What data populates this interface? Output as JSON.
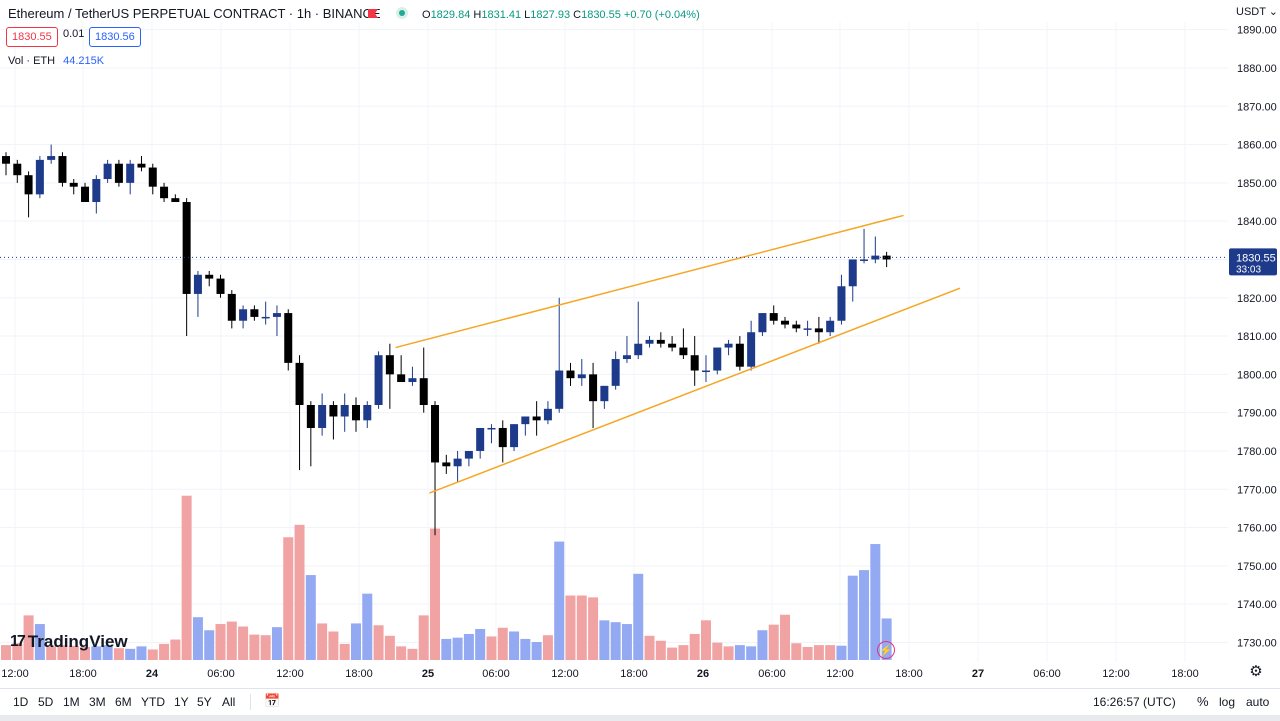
{
  "header": {
    "title": "Ethereum / TetherUS PERPETUAL CONTRACT · 1h · BINANCE",
    "ohlc": {
      "o_label": "O",
      "o": "1829.84",
      "h_label": "H",
      "h": "1831.41",
      "l_label": "L",
      "l": "1827.93",
      "c_label": "C",
      "c": "1830.55",
      "change": "+0.70 (+0.04%)"
    },
    "sell_price": "1830.55",
    "spread": "0.01",
    "buy_price": "1830.56",
    "volume_label": "Vol · ETH",
    "volume_value": "44.215K",
    "currency": "USDT"
  },
  "colors": {
    "up": "#1e3a8a",
    "down": "#000000",
    "vol_up": "#93a9f2",
    "vol_down": "#f1a3a3",
    "trend": "#f5a623",
    "price_badge": "#1e3a8a"
  },
  "chart_data": {
    "type": "candlestick",
    "symbol": "ETHUSDT.P",
    "interval": "1h",
    "y_axis": {
      "range": [
        1724,
        1892
      ],
      "ticks": [
        1730,
        1740,
        1750,
        1760,
        1770,
        1780,
        1790,
        1800,
        1810,
        1820,
        1830,
        1840,
        1850,
        1860,
        1870,
        1880,
        1890
      ]
    },
    "x_ticks": [
      "12:00",
      "18:00",
      "24",
      "06:00",
      "12:00",
      "18:00",
      "25",
      "06:00",
      "12:00",
      "18:00",
      "26",
      "06:00",
      "12:00",
      "18:00",
      "27",
      "06:00",
      "12:00",
      "18:00"
    ],
    "last_price": "1830.55",
    "countdown": "33:03",
    "candles": [
      [
        1857,
        1858,
        1852,
        1855
      ],
      [
        1855,
        1856,
        1850,
        1852
      ],
      [
        1852,
        1853,
        1841,
        1847
      ],
      [
        1847,
        1857,
        1846,
        1856
      ],
      [
        1856,
        1860,
        1855,
        1857
      ],
      [
        1857,
        1858,
        1849,
        1850
      ],
      [
        1850,
        1851,
        1847,
        1849
      ],
      [
        1849,
        1850,
        1845,
        1845
      ],
      [
        1845,
        1852,
        1842,
        1851
      ],
      [
        1851,
        1856,
        1850,
        1855
      ],
      [
        1855,
        1856,
        1849,
        1850
      ],
      [
        1850,
        1856,
        1847,
        1855
      ],
      [
        1855,
        1857,
        1853,
        1854
      ],
      [
        1854,
        1855,
        1847,
        1849
      ],
      [
        1849,
        1850,
        1845,
        1846
      ],
      [
        1846,
        1847,
        1845,
        1845
      ],
      [
        1845,
        1846,
        1810,
        1821
      ],
      [
        1821,
        1827,
        1815,
        1826
      ],
      [
        1826,
        1827,
        1823,
        1825
      ],
      [
        1825,
        1826,
        1820,
        1821
      ],
      [
        1821,
        1822,
        1812,
        1814
      ],
      [
        1814,
        1818,
        1812,
        1817
      ],
      [
        1817,
        1818,
        1814,
        1815
      ],
      [
        1815,
        1819,
        1813,
        1815
      ],
      [
        1815,
        1818,
        1810,
        1816
      ],
      [
        1816,
        1817,
        1801,
        1803
      ],
      [
        1803,
        1805,
        1775,
        1792
      ],
      [
        1792,
        1793,
        1776,
        1786
      ],
      [
        1786,
        1795,
        1784,
        1792
      ],
      [
        1792,
        1793,
        1783,
        1789
      ],
      [
        1789,
        1795,
        1785,
        1792
      ],
      [
        1792,
        1794,
        1785,
        1788
      ],
      [
        1788,
        1793,
        1786,
        1792
      ],
      [
        1792,
        1806,
        1791,
        1805
      ],
      [
        1805,
        1808,
        1791,
        1800
      ],
      [
        1800,
        1805,
        1798,
        1798
      ],
      [
        1798,
        1802,
        1797,
        1799
      ],
      [
        1799,
        1807,
        1790,
        1792
      ],
      [
        1792,
        1793,
        1758,
        1777
      ],
      [
        1777,
        1779,
        1774,
        1776
      ],
      [
        1776,
        1780,
        1772,
        1778
      ],
      [
        1778,
        1780,
        1776,
        1780
      ],
      [
        1780,
        1786,
        1778,
        1786
      ],
      [
        1786,
        1787,
        1782,
        1786
      ],
      [
        1786,
        1788,
        1777,
        1781
      ],
      [
        1781,
        1787,
        1780,
        1787
      ],
      [
        1787,
        1789,
        1784,
        1789
      ],
      [
        1789,
        1793,
        1784,
        1788
      ],
      [
        1788,
        1793,
        1787,
        1791
      ],
      [
        1791,
        1820,
        1790,
        1801
      ],
      [
        1801,
        1803,
        1797,
        1799
      ],
      [
        1799,
        1804,
        1797,
        1800
      ],
      [
        1800,
        1803,
        1786,
        1793
      ],
      [
        1793,
        1797,
        1791,
        1797
      ],
      [
        1797,
        1806,
        1796,
        1804
      ],
      [
        1804,
        1810,
        1803,
        1805
      ],
      [
        1805,
        1819,
        1804,
        1808
      ],
      [
        1808,
        1810,
        1807,
        1809
      ],
      [
        1809,
        1811,
        1807,
        1808
      ],
      [
        1808,
        1810,
        1806,
        1807
      ],
      [
        1807,
        1812,
        1804,
        1805
      ],
      [
        1805,
        1810,
        1797,
        1801
      ],
      [
        1801,
        1805,
        1798,
        1801
      ],
      [
        1801,
        1807,
        1800,
        1807
      ],
      [
        1807,
        1809,
        1805,
        1808
      ],
      [
        1808,
        1810,
        1801,
        1802
      ],
      [
        1802,
        1814,
        1801,
        1811
      ],
      [
        1811,
        1816,
        1810,
        1816
      ],
      [
        1816,
        1818,
        1813,
        1814
      ],
      [
        1814,
        1815,
        1812,
        1813
      ],
      [
        1813,
        1814,
        1811,
        1812
      ],
      [
        1812,
        1814,
        1810,
        1812
      ],
      [
        1812,
        1815,
        1808,
        1811
      ],
      [
        1811,
        1815,
        1810,
        1814
      ],
      [
        1814,
        1826,
        1813,
        1823
      ],
      [
        1823,
        1829,
        1819,
        1830
      ],
      [
        1830,
        1838,
        1829,
        1830
      ],
      [
        1830,
        1836,
        1829,
        1831
      ],
      [
        1831,
        1832,
        1828,
        1830
      ]
    ],
    "volumes": [
      [
        0.24,
        0
      ],
      [
        0.27,
        0
      ],
      [
        0.72,
        0
      ],
      [
        0.58,
        1
      ],
      [
        0.22,
        0
      ],
      [
        0.24,
        0
      ],
      [
        0.23,
        0
      ],
      [
        0.21,
        0
      ],
      [
        0.22,
        1
      ],
      [
        0.24,
        1
      ],
      [
        0.19,
        0
      ],
      [
        0.18,
        1
      ],
      [
        0.22,
        1
      ],
      [
        0.17,
        0
      ],
      [
        0.26,
        0
      ],
      [
        0.33,
        0
      ],
      [
        2.65,
        0
      ],
      [
        0.69,
        1
      ],
      [
        0.48,
        1
      ],
      [
        0.58,
        0
      ],
      [
        0.62,
        0
      ],
      [
        0.54,
        0
      ],
      [
        0.41,
        0
      ],
      [
        0.4,
        0
      ],
      [
        0.53,
        1
      ],
      [
        1.98,
        0
      ],
      [
        2.18,
        0
      ],
      [
        1.37,
        1
      ],
      [
        0.59,
        0
      ],
      [
        0.46,
        0
      ],
      [
        0.26,
        0
      ],
      [
        0.59,
        1
      ],
      [
        1.07,
        1
      ],
      [
        0.56,
        0
      ],
      [
        0.39,
        0
      ],
      [
        0.22,
        0
      ],
      [
        0.18,
        0
      ],
      [
        0.72,
        0
      ],
      [
        2.12,
        0
      ],
      [
        0.34,
        1
      ],
      [
        0.36,
        1
      ],
      [
        0.42,
        1
      ],
      [
        0.5,
        1
      ],
      [
        0.38,
        0
      ],
      [
        0.52,
        0
      ],
      [
        0.46,
        1
      ],
      [
        0.34,
        1
      ],
      [
        0.29,
        1
      ],
      [
        0.4,
        0
      ],
      [
        1.91,
        1
      ],
      [
        1.04,
        0
      ],
      [
        1.04,
        0
      ],
      [
        1.01,
        0
      ],
      [
        0.64,
        1
      ],
      [
        0.61,
        1
      ],
      [
        0.58,
        1
      ],
      [
        1.39,
        1
      ],
      [
        0.39,
        0
      ],
      [
        0.31,
        0
      ],
      [
        0.2,
        0
      ],
      [
        0.24,
        0
      ],
      [
        0.42,
        0
      ],
      [
        0.64,
        0
      ],
      [
        0.28,
        0
      ],
      [
        0.22,
        0
      ],
      [
        0.24,
        1
      ],
      [
        0.22,
        1
      ],
      [
        0.48,
        1
      ],
      [
        0.57,
        0
      ],
      [
        0.73,
        0
      ],
      [
        0.27,
        0
      ],
      [
        0.21,
        0
      ],
      [
        0.24,
        0
      ],
      [
        0.24,
        0
      ],
      [
        0.23,
        1
      ],
      [
        1.36,
        1
      ],
      [
        1.45,
        1
      ],
      [
        1.87,
        1
      ],
      [
        0.67,
        1
      ]
    ],
    "trendlines": [
      {
        "name": "upper",
        "from": [
          34.5,
          1807
        ],
        "to": [
          79.5,
          1841.5
        ]
      },
      {
        "name": "lower",
        "from": [
          37.5,
          1769
        ],
        "to": [
          84.5,
          1822.5
        ]
      }
    ]
  },
  "footer": {
    "ranges": [
      "1D",
      "5D",
      "1M",
      "3M",
      "6M",
      "YTD",
      "1Y",
      "5Y",
      "All"
    ],
    "clock": "16:26:57 (UTC)",
    "percent": "%",
    "log": "log",
    "auto": "auto",
    "logo_text": "TradingView"
  }
}
